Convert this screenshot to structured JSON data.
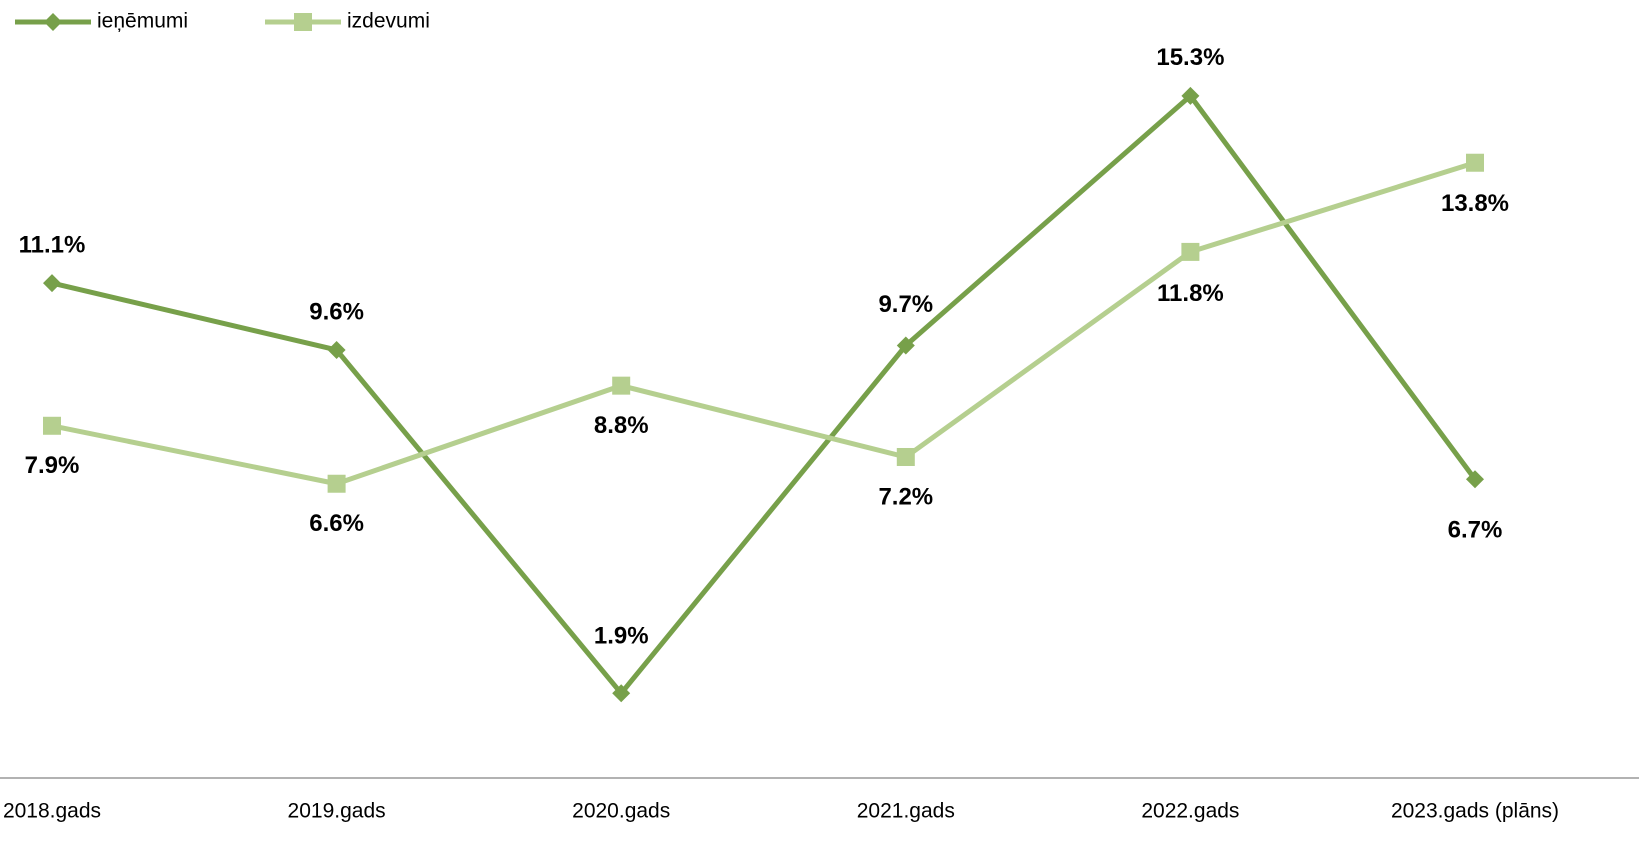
{
  "chart_data": {
    "type": "line",
    "categories": [
      "2018.gads",
      "2019.gads",
      "2020.gads",
      "2021.gads",
      "2022.gads",
      "2023.gads (plāns)"
    ],
    "series": [
      {
        "name": "ieņēmumi",
        "color": "#77a04a",
        "marker": "diamond",
        "values": [
          11.1,
          9.6,
          1.9,
          9.7,
          15.3,
          6.7
        ],
        "value_labels": [
          "11.1%",
          "9.6%",
          "1.9%",
          "9.7%",
          "15.3%",
          "6.7%"
        ]
      },
      {
        "name": "izdevumi",
        "color": "#b5cf8f",
        "marker": "square",
        "values": [
          7.9,
          6.6,
          8.8,
          7.2,
          11.8,
          13.8
        ],
        "value_labels": [
          "7.9%",
          "6.6%",
          "8.8%",
          "7.2%",
          "11.8%",
          "13.8%"
        ]
      }
    ],
    "ylim": [
      0,
      17.45
    ],
    "legend": "top-left",
    "grid": false
  }
}
